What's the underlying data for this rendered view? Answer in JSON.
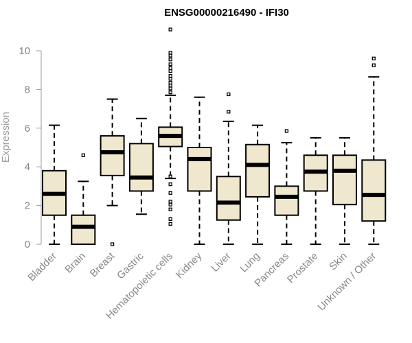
{
  "chart_data": {
    "type": "boxplot",
    "title": "ENSG00000216490 - IFI30",
    "xlabel": "",
    "ylabel": "Expression",
    "ylim": [
      0,
      11
    ],
    "yticks": [
      0,
      2,
      4,
      6,
      8,
      10
    ],
    "grid": false,
    "box_fill": "#efe8cf",
    "box_stroke": "#000000",
    "axis_color": "#999999",
    "categories": [
      "Bladder",
      "Brain",
      "Breast",
      "Gastric",
      "Hematopoietic cells",
      "Kidney",
      "Liver",
      "Lung",
      "Pancreas",
      "Prostate",
      "Skin",
      "Unknown / Other"
    ],
    "boxes": [
      {
        "category": "Bladder",
        "whisker_low": 0,
        "q1": 1.5,
        "median": 2.6,
        "q3": 3.8,
        "whisker_high": 6.15,
        "outliers": []
      },
      {
        "category": "Brain",
        "whisker_low": 0,
        "q1": 0,
        "median": 0.9,
        "q3": 1.5,
        "whisker_high": 3.25,
        "outliers": [
          4.6
        ]
      },
      {
        "category": "Breast",
        "whisker_low": 2.0,
        "q1": 3.55,
        "median": 4.75,
        "q3": 5.6,
        "whisker_high": 7.5,
        "outliers": [
          0
        ]
      },
      {
        "category": "Gastric",
        "whisker_low": 1.55,
        "q1": 2.75,
        "median": 3.45,
        "q3": 5.2,
        "whisker_high": 6.5,
        "outliers": []
      },
      {
        "category": "Hematopoietic cells",
        "whisker_low": 3.4,
        "q1": 5.05,
        "median": 5.6,
        "q3": 6.05,
        "whisker_high": 7.7,
        "outliers": [
          1.05,
          1.3,
          1.8,
          2.05,
          2.2,
          2.65,
          3.1,
          3.5,
          7.85,
          8.05,
          8.2,
          8.35,
          8.55,
          8.7,
          8.95,
          9.1,
          9.3,
          9.55,
          9.75,
          9.9,
          11.1
        ]
      },
      {
        "category": "Kidney",
        "whisker_low": 0,
        "q1": 2.75,
        "median": 4.4,
        "q3": 5.0,
        "whisker_high": 7.6,
        "outliers": []
      },
      {
        "category": "Liver",
        "whisker_low": 0,
        "q1": 1.25,
        "median": 2.15,
        "q3": 3.5,
        "whisker_high": 6.35,
        "outliers": [
          6.85,
          7.75
        ]
      },
      {
        "category": "Lung",
        "whisker_low": 0,
        "q1": 2.45,
        "median": 4.1,
        "q3": 5.15,
        "whisker_high": 6.15,
        "outliers": []
      },
      {
        "category": "Pancreas",
        "whisker_low": 0,
        "q1": 1.5,
        "median": 2.45,
        "q3": 3.0,
        "whisker_high": 5.25,
        "outliers": [
          5.85
        ]
      },
      {
        "category": "Prostate",
        "whisker_low": 0,
        "q1": 2.75,
        "median": 3.75,
        "q3": 4.6,
        "whisker_high": 5.5,
        "outliers": []
      },
      {
        "category": "Skin",
        "whisker_low": 0,
        "q1": 2.05,
        "median": 3.8,
        "q3": 4.6,
        "whisker_high": 5.5,
        "outliers": []
      },
      {
        "category": "Unknown / Other",
        "whisker_low": 0,
        "q1": 1.2,
        "median": 2.55,
        "q3": 4.35,
        "whisker_high": 8.65,
        "outliers": [
          9.25,
          9.6
        ]
      }
    ]
  }
}
